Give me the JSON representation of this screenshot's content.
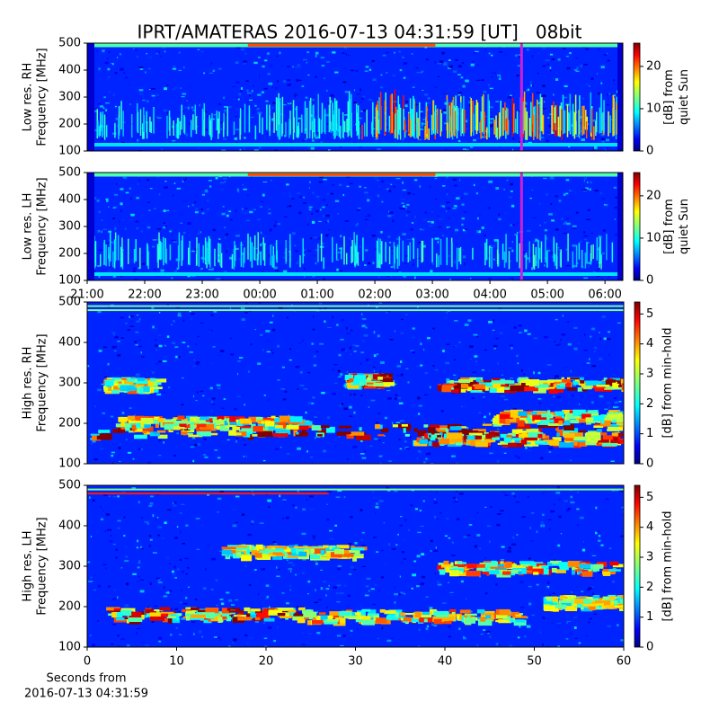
{
  "chart_data": [
    {
      "type": "heatmap",
      "title": "IPRT/AMATERAS 2016-07-13 04:31:59 [UT]   08bit",
      "ylabel": [
        "Low res. RH",
        "Frequency [MHz]"
      ],
      "ylim": [
        100,
        500
      ],
      "yticks": [
        100,
        200,
        300,
        400,
        500
      ],
      "xlim": [
        21,
        30.31
      ],
      "colormap": "jet",
      "clim": [
        0,
        25.5
      ],
      "cticks": [
        0,
        10,
        20
      ],
      "colorbar_label": [
        "[dB] from",
        "quiet Sun"
      ],
      "marker_x": 28.55,
      "marker_color": "#d21fd2"
    },
    {
      "type": "heatmap",
      "ylabel": [
        "Low res. LH",
        "Frequency [MHz]"
      ],
      "ylim": [
        100,
        500
      ],
      "yticks": [
        100,
        200,
        300,
        400,
        500
      ],
      "xlim": [
        21,
        30.31
      ],
      "xticks": [
        {
          "value": 21,
          "label": "21:00"
        },
        {
          "value": 22,
          "label": "22:00"
        },
        {
          "value": 23,
          "label": "23:00"
        },
        {
          "value": 24,
          "label": "00:00"
        },
        {
          "value": 25,
          "label": "01:00"
        },
        {
          "value": 26,
          "label": "02:00"
        },
        {
          "value": 27,
          "label": "03:00"
        },
        {
          "value": 28,
          "label": "04:00"
        },
        {
          "value": 29,
          "label": "05:00"
        },
        {
          "value": 30,
          "label": "06:00"
        }
      ],
      "colormap": "jet",
      "clim": [
        0,
        25.5
      ],
      "cticks": [
        0,
        10,
        20
      ],
      "colorbar_label": [
        "[dB] from",
        "quiet Sun"
      ],
      "marker_x": 28.55,
      "marker_color": "#d21fd2"
    },
    {
      "type": "heatmap",
      "ylabel": [
        "High res. RH",
        "Frequency [MHz]"
      ],
      "ylim": [
        100,
        500
      ],
      "yticks": [
        100,
        200,
        300,
        400,
        500
      ],
      "xlim": [
        0,
        60
      ],
      "colormap": "jet",
      "clim": [
        0,
        5.4
      ],
      "cticks": [
        0,
        1,
        2,
        3,
        4,
        5
      ],
      "colorbar_label": [
        "[dB] from min-hold"
      ]
    },
    {
      "type": "heatmap",
      "ylabel": [
        "High res. LH",
        "Frequency [MHz]"
      ],
      "ylim": [
        100,
        500
      ],
      "yticks": [
        100,
        200,
        300,
        400,
        500
      ],
      "xlim": [
        0,
        60
      ],
      "xticks": [
        0,
        10,
        20,
        30,
        40,
        50,
        60
      ],
      "xlabel": [
        "Seconds from",
        "2016-07-13 04:31:59"
      ],
      "colormap": "jet",
      "clim": [
        0,
        5.4
      ],
      "cticks": [
        0,
        1,
        2,
        3,
        4,
        5
      ],
      "colorbar_label": [
        "[dB] from min-hold"
      ]
    }
  ]
}
